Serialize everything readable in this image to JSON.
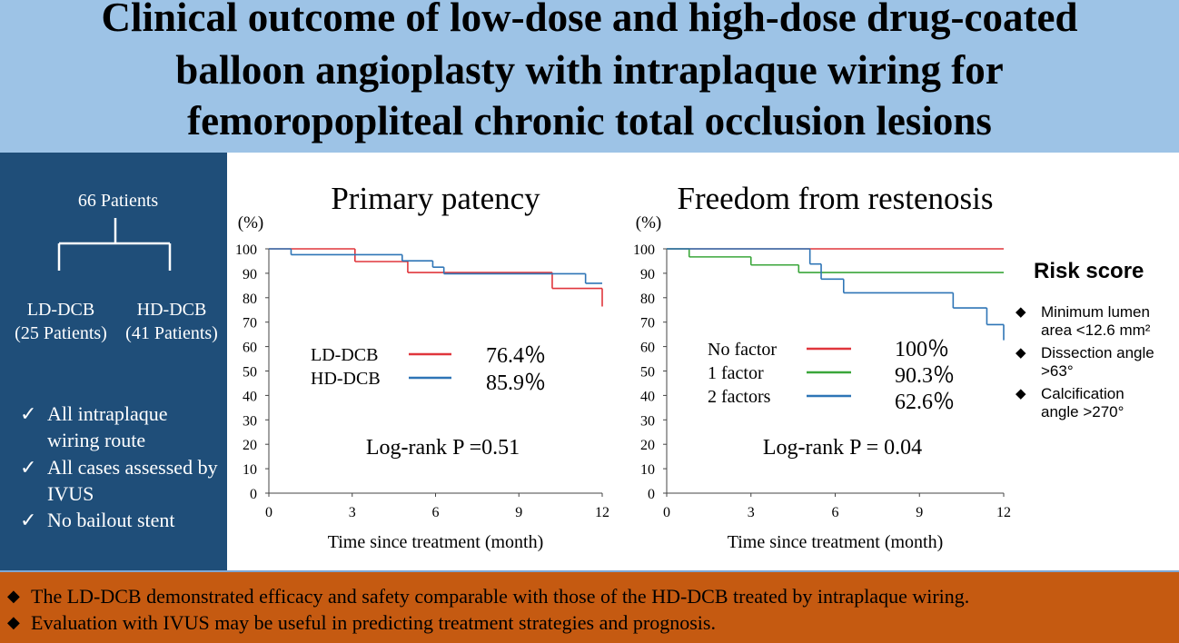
{
  "header": {
    "title_lines": [
      "Clinical outcome of low-dose and high-dose drug-coated",
      "balloon angioplasty with intraplaque wiring for",
      "femoropopliteal chronic total occlusion lesions"
    ]
  },
  "left_panel": {
    "total": "66 Patients",
    "groups": [
      {
        "name": "LD-DCB",
        "count": "(25 Patients)"
      },
      {
        "name": "HD-DCB",
        "count": "(41 Patients)"
      }
    ],
    "checks": [
      "All intraplaque wiring route",
      "All cases assessed by IVUS",
      "No bailout stent"
    ]
  },
  "risk_score": {
    "title": "Risk score",
    "items": [
      "Minimum lumen area <12.6 mm²",
      "Dissection angle >63°",
      "Calcification angle >270°"
    ]
  },
  "footer": {
    "points": [
      "The LD-DCB demonstrated efficacy and safety comparable with those of the HD-DCB treated by intraplaque wiring.",
      "Evaluation with IVUS may be useful in predicting treatment strategies and prognosis."
    ]
  },
  "chart_data": [
    {
      "type": "step",
      "title": "Primary patency",
      "y_label": "(%)",
      "x_label": "Time since treatment (month)",
      "annotation": "Log-rank P =0.51",
      "xlim": [
        0,
        12
      ],
      "xticks": [
        0,
        3,
        6,
        9,
        12
      ],
      "ylim": [
        0,
        100
      ],
      "yticks": [
        0,
        10,
        20,
        30,
        40,
        50,
        60,
        70,
        80,
        90,
        100
      ],
      "series": [
        {
          "name": "LD-DCB",
          "color": "#e0363c",
          "x": [
            0,
            3.1,
            5.0,
            10.2,
            12
          ],
          "values": [
            100,
            94.8,
            90.3,
            83.8,
            76.4
          ],
          "value_labels": [
            null,
            null,
            null,
            null,
            "76.4％"
          ]
        },
        {
          "name": "HD-DCB",
          "color": "#2e75b6",
          "x": [
            0,
            0.8,
            4.8,
            5.9,
            6.3,
            11.4,
            12
          ],
          "values": [
            100,
            97.6,
            95.1,
            92.5,
            89.8,
            85.9,
            85.9
          ],
          "value_labels": [
            null,
            null,
            null,
            null,
            null,
            null,
            "85.9％"
          ]
        }
      ]
    },
    {
      "type": "step",
      "title": "Freedom from restenosis",
      "y_label": "(%)",
      "x_label": "Time since treatment (month)",
      "annotation": "Log-rank P = 0.04",
      "xlim": [
        0,
        12
      ],
      "xticks": [
        0,
        3,
        6,
        9,
        12
      ],
      "ylim": [
        0,
        100
      ],
      "yticks": [
        0,
        10,
        20,
        30,
        40,
        50,
        60,
        70,
        80,
        90,
        100
      ],
      "series": [
        {
          "name": "No factor",
          "color": "#e0363c",
          "x": [
            0,
            12
          ],
          "values": [
            100,
            100
          ],
          "value_labels": [
            null,
            "100％"
          ]
        },
        {
          "name": "1 factor",
          "color": "#3aa63a",
          "x": [
            0,
            0.8,
            3.0,
            4.7,
            12
          ],
          "values": [
            100,
            96.7,
            93.4,
            90.3,
            90.3
          ],
          "value_labels": [
            null,
            null,
            null,
            null,
            "90.3％"
          ]
        },
        {
          "name": "2 factors",
          "color": "#2e75b6",
          "x": [
            0,
            5.1,
            5.5,
            6.3,
            10.2,
            11.4,
            12
          ],
          "values": [
            100,
            93.8,
            87.6,
            82,
            75.8,
            69,
            62.6
          ],
          "value_labels": [
            null,
            null,
            null,
            null,
            null,
            null,
            "62.6％"
          ]
        }
      ]
    }
  ]
}
